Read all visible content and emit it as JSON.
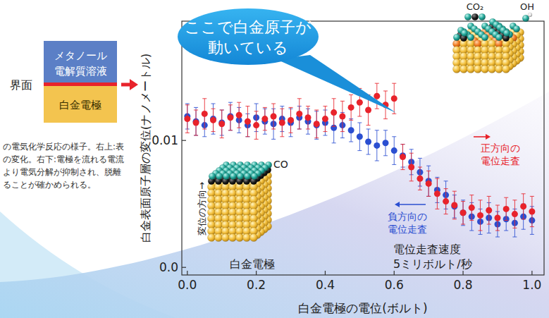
{
  "chart_data": {
    "type": "scatter",
    "x_label": "白金電極の電位(ボルト)",
    "y_label": "白金表面原子層の変位(ナノメートル)",
    "xlim": [
      -0.016,
      1.035
    ],
    "ylim": [
      -0.0006,
      0.0194
    ],
    "xticks": [
      {
        "value": 0,
        "label": "0.0"
      },
      0.2,
      0.4,
      0.6,
      0.8,
      {
        "value": 1,
        "label": "1.0"
      }
    ],
    "yticks": [
      {
        "value": 0,
        "label": "0.0"
      },
      0.01
    ],
    "x": [
      0,
      0.025,
      0.05,
      0.075,
      0.1,
      0.125,
      0.15,
      0.175,
      0.2,
      0.225,
      0.25,
      0.275,
      0.3,
      0.325,
      0.35,
      0.375,
      0.4,
      0.425,
      0.45,
      0.475,
      0.5,
      0.525,
      0.55,
      0.575,
      0.6,
      0.625,
      0.65,
      0.675,
      0.7,
      0.725,
      0.75,
      0.775,
      0.8,
      0.825,
      0.85,
      0.875,
      0.9,
      0.925,
      0.95,
      0.975,
      1
    ],
    "series": [
      {
        "name": "負方向の電位走査",
        "color": "#2b4fd1",
        "marker": "circle",
        "values": [
          0.0119,
          0.0115,
          0.0112,
          0.0117,
          0.0114,
          0.0119,
          0.0116,
          0.0112,
          0.0118,
          0.0115,
          0.0113,
          0.0117,
          0.0114,
          0.0118,
          0.0115,
          0.0112,
          0.0114,
          0.011,
          0.0112,
          0.0108,
          0.0103,
          0.0099,
          0.0096,
          0.0098,
          0.0092,
          0.0088,
          0.0083,
          0.0075,
          0.0068,
          0.0061,
          0.0057,
          0.0048,
          0.0043,
          0.004,
          0.0036,
          0.0039,
          0.0034,
          0.0038,
          0.0035,
          0.004,
          0.0037
        ],
        "errors": [
          0.001,
          0.0011,
          0.0009,
          0.0012,
          0.001,
          0.0011,
          0.001,
          0.0009,
          0.0011,
          0.001,
          0.0012,
          0.001,
          0.0011,
          0.0009,
          0.001,
          0.0011,
          0.001,
          0.0012,
          0.001,
          0.0009,
          0.0011,
          0.001,
          0.0012,
          0.001,
          0.0011,
          0.0009,
          0.001,
          0.0011,
          0.0012,
          0.001,
          0.0011,
          0.0009,
          0.001,
          0.0011,
          0.001,
          0.0012,
          0.001,
          0.0009,
          0.0011,
          0.001,
          0.0011
        ]
      },
      {
        "name": "正方向の電位走査",
        "color": "#e8232b",
        "marker": "circle",
        "values": [
          0.0117,
          0.0114,
          0.0121,
          0.0116,
          0.0113,
          0.0118,
          0.012,
          0.0115,
          0.0112,
          0.0117,
          0.0119,
          0.0114,
          0.0116,
          0.0121,
          0.0118,
          0.0113,
          0.0117,
          0.0122,
          0.0119,
          0.0126,
          0.013,
          0.0124,
          0.0135,
          0.0128,
          0.0133,
          0.0087,
          0.0079,
          0.007,
          0.0066,
          0.0058,
          0.0052,
          0.0049,
          0.0043,
          0.0047,
          0.0041,
          0.0045,
          0.0039,
          0.0046,
          0.0042,
          0.0048,
          0.0044
        ],
        "errors": [
          0.0011,
          0.001,
          0.0012,
          0.0009,
          0.0011,
          0.001,
          0.001,
          0.0012,
          0.0011,
          0.0009,
          0.001,
          0.0011,
          0.001,
          0.0012,
          0.0009,
          0.0011,
          0.001,
          0.0011,
          0.0012,
          0.001,
          0.0011,
          0.0012,
          0.001,
          0.0011,
          0.0012,
          0.001,
          0.0011,
          0.0009,
          0.001,
          0.0012,
          0.001,
          0.0011,
          0.0009,
          0.001,
          0.0012,
          0.0011,
          0.001,
          0.0009,
          0.0011,
          0.001,
          0.0012
        ]
      }
    ]
  },
  "diagram": {
    "interface": "界面",
    "solution": [
      "メタノール",
      "電解質溶液"
    ],
    "electrode": "白金電極"
  },
  "caption": [
    "の電気化学反応の様子。右上:表",
    "の変化。右下:電極を流れる電流",
    "より電気分解が抑制され、脱離",
    "ることが確かめられる。"
  ],
  "callout": [
    "ここで白金原子が",
    "動いている"
  ],
  "model_labels": {
    "co": "CO",
    "co2": "CO₂",
    "oh": "OH",
    "electrode": "白金電極",
    "displacement": "変位の方向→"
  },
  "scan_rate": [
    "電位走査速度",
    "5ミリボルト/秒"
  ]
}
